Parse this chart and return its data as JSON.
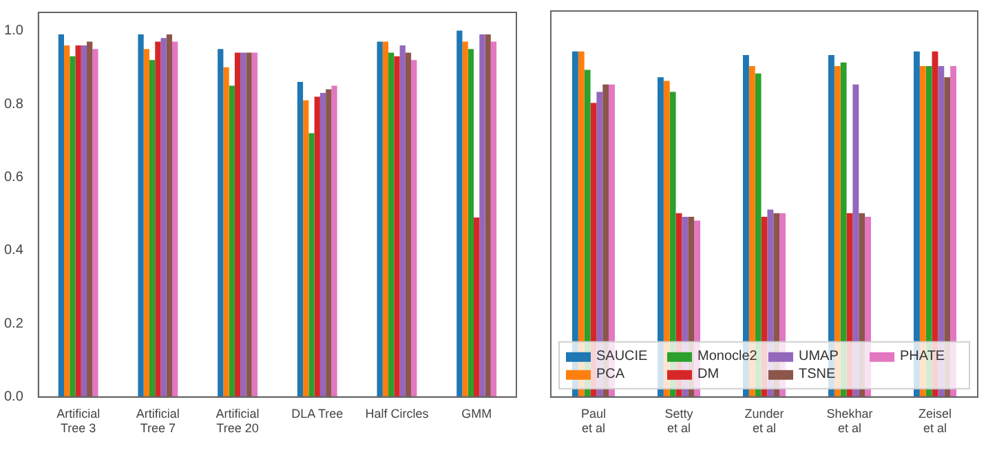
{
  "chart_data": [
    {
      "type": "bar",
      "categories": [
        "Artificial Tree 3",
        "Artificial Tree 7",
        "Artificial Tree 20",
        "DLA Tree",
        "Half Circles",
        "GMM"
      ],
      "series": [
        {
          "color": "#1f77b4",
          "values": [
            0.99,
            0.99,
            0.95,
            0.86,
            0.97,
            1.0
          ]
        },
        {
          "color": "#ff7f0e",
          "values": [
            0.96,
            0.95,
            0.9,
            0.81,
            0.97,
            0.97
          ]
        },
        {
          "color": "#2ca02c",
          "values": [
            0.93,
            0.92,
            0.85,
            0.72,
            0.94,
            0.95
          ]
        },
        {
          "color": "#d62728",
          "values": [
            0.96,
            0.97,
            0.94,
            0.82,
            0.93,
            0.49
          ]
        },
        {
          "color": "#9467bd",
          "values": [
            0.96,
            0.98,
            0.94,
            0.83,
            0.96,
            0.99
          ]
        },
        {
          "color": "#8c564b",
          "values": [
            0.97,
            0.99,
            0.94,
            0.84,
            0.94,
            0.99
          ]
        },
        {
          "color": "#e377c2",
          "values": [
            0.95,
            0.97,
            0.94,
            0.85,
            0.92,
            0.97
          ]
        }
      ],
      "ylim": [
        0,
        1.05
      ],
      "yticks": [
        {
          "value": 0,
          "label": "0.0"
        },
        {
          "value": 0.2,
          "label": "0.2"
        },
        {
          "value": 0.4,
          "label": "0.4"
        },
        {
          "value": 0.6,
          "label": "0.6"
        },
        {
          "value": 0.8,
          "label": "0.8"
        },
        {
          "value": 1,
          "label": "1.0"
        }
      ],
      "grid": false
    },
    {
      "type": "bar",
      "categories": [
        "Paul et al",
        "Setty et al",
        "Zunder et al",
        "Shekhar et al",
        "Zeisel et al"
      ],
      "series": [
        {
          "name": "SAUCIE",
          "color": "#1f77b4",
          "values": [
            0.94,
            0.87,
            0.93,
            0.93,
            0.94
          ]
        },
        {
          "name": "PCA",
          "color": "#ff7f0e",
          "values": [
            0.94,
            0.86,
            0.9,
            0.9,
            0.9
          ]
        },
        {
          "name": "Monocle2",
          "color": "#2ca02c",
          "values": [
            0.89,
            0.83,
            0.88,
            0.91,
            0.9
          ]
        },
        {
          "name": "DM",
          "color": "#d62728",
          "values": [
            0.8,
            0.5,
            0.49,
            0.5,
            0.94
          ]
        },
        {
          "name": "UMAP",
          "color": "#9467bd",
          "values": [
            0.83,
            0.49,
            0.51,
            0.85,
            0.9
          ]
        },
        {
          "name": "TSNE",
          "color": "#8c564b",
          "values": [
            0.85,
            0.49,
            0.5,
            0.5,
            0.87
          ]
        },
        {
          "name": "PHATE",
          "color": "#e377c2",
          "values": [
            0.85,
            0.48,
            0.5,
            0.49,
            0.9
          ]
        }
      ],
      "ylim": [
        0,
        1.05
      ],
      "tick_labels": "x",
      "legend": "bottom",
      "grid": false
    }
  ]
}
